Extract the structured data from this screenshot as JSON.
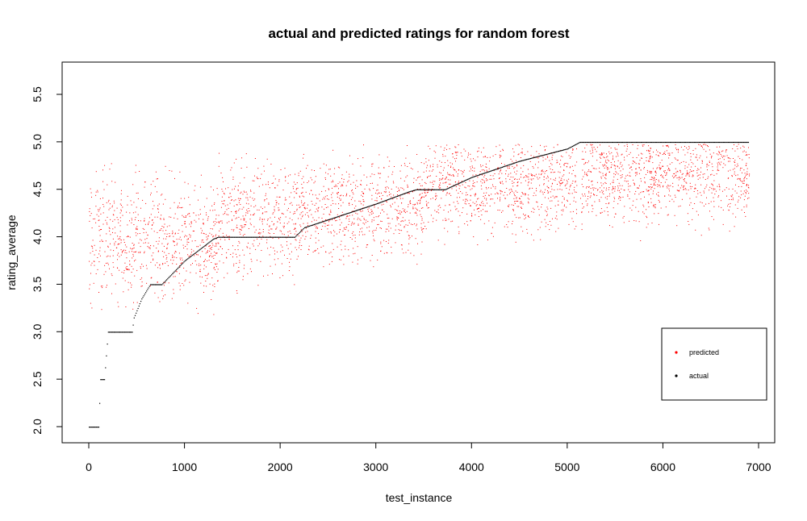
{
  "chart_data": {
    "type": "scatter",
    "title": "actual and predicted ratings for random forest",
    "xlabel": "test_instance",
    "ylabel": "rating_average",
    "xlim": [
      -50,
      7000
    ],
    "ylim": [
      2.0,
      5.5
    ],
    "x_ticks": [
      0,
      1000,
      2000,
      3000,
      4000,
      5000,
      6000,
      7000
    ],
    "y_ticks": [
      "2.0",
      "2.5",
      "3.0",
      "3.5",
      "4.0",
      "4.5",
      "5.0",
      "5.5"
    ],
    "grid": false,
    "legend_position": "bottom-right",
    "series": [
      {
        "name": "predicted",
        "color": "#ff0000",
        "point_count": 6900,
        "trend_by_x_range": [
          {
            "x": [
              0,
              500
            ],
            "center": 4.0,
            "spread": 0.55
          },
          {
            "x": [
              500,
              1350
            ],
            "center": 3.95,
            "spread": 0.5
          },
          {
            "x": [
              1350,
              2200
            ],
            "center": 4.2,
            "spread": 0.5
          },
          {
            "x": [
              2200,
              3500
            ],
            "center": 4.3,
            "spread": 0.45
          },
          {
            "x": [
              3500,
              5100
            ],
            "center": 4.55,
            "spread": 0.4
          },
          {
            "x": [
              5130,
              6900
            ],
            "center": 4.65,
            "spread": 0.4
          }
        ]
      },
      {
        "name": "actual",
        "color": "#000000",
        "point_count": 6900,
        "step_points": [
          {
            "x": 0,
            "y": 2.0
          },
          {
            "x": 100,
            "y": 2.0
          },
          {
            "x": 120,
            "y": 2.5
          },
          {
            "x": 160,
            "y": 2.5
          },
          {
            "x": 200,
            "y": 3.0
          },
          {
            "x": 450,
            "y": 3.0
          },
          {
            "x": 470,
            "y": 3.15
          },
          {
            "x": 550,
            "y": 3.35
          },
          {
            "x": 640,
            "y": 3.5
          },
          {
            "x": 760,
            "y": 3.5
          },
          {
            "x": 1000,
            "y": 3.75
          },
          {
            "x": 1300,
            "y": 3.98
          },
          {
            "x": 1350,
            "y": 4.0
          },
          {
            "x": 2150,
            "y": 4.0
          },
          {
            "x": 2250,
            "y": 4.1
          },
          {
            "x": 2700,
            "y": 4.25
          },
          {
            "x": 3000,
            "y": 4.35
          },
          {
            "x": 3350,
            "y": 4.48
          },
          {
            "x": 3420,
            "y": 4.5
          },
          {
            "x": 3720,
            "y": 4.5
          },
          {
            "x": 4000,
            "y": 4.63
          },
          {
            "x": 4500,
            "y": 4.8
          },
          {
            "x": 5000,
            "y": 4.93
          },
          {
            "x": 5130,
            "y": 5.0
          },
          {
            "x": 6900,
            "y": 5.0
          }
        ]
      }
    ]
  },
  "legend": {
    "items": [
      {
        "label": "predicted",
        "color": "#ff0000"
      },
      {
        "label": "actual",
        "color": "#000000"
      }
    ]
  }
}
